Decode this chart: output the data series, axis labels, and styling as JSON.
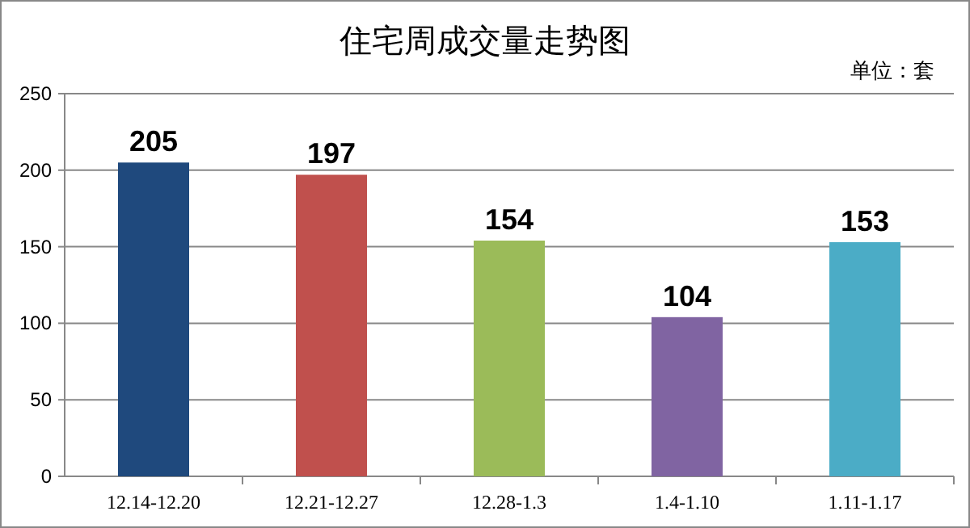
{
  "chart_data": {
    "type": "bar",
    "title": "住宅周成交量走势图",
    "annotations": [
      "单位：套"
    ],
    "categories": [
      "12.14-12.20",
      "12.21-12.27",
      "12.28-1.3",
      "1.4-1.10",
      "1.11-1.17"
    ],
    "values": [
      205,
      197,
      154,
      104,
      153
    ],
    "colors": [
      "#1f497d",
      "#c0504d",
      "#9bbb59",
      "#8064a2",
      "#4bacc6"
    ],
    "ylim": [
      0,
      250
    ],
    "yticks": [
      0,
      50,
      100,
      150,
      200,
      250
    ],
    "grid": "y",
    "data_labels": true
  }
}
